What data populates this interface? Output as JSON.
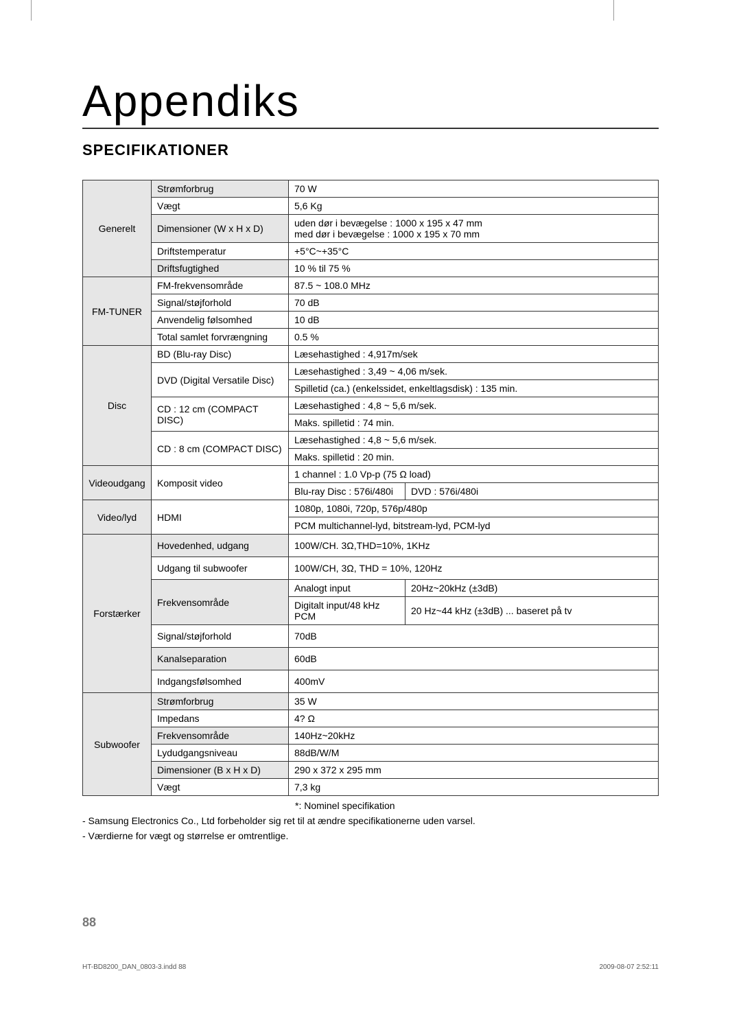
{
  "title": "Appendiks",
  "subtitle": "SPECIFIKATIONER",
  "footnote1": "*:  Nominel specifikation",
  "footnote2": "- Samsung Electronics Co., Ltd forbeholder sig ret til at ændre specifikationerne uden varsel.",
  "footnote3": "- Værdierne for vægt og størrelse er omtrentlige.",
  "page_num": "88",
  "doc_id": "HT-BD8200_DAN_0803-3.indd   88",
  "timestamp": "2009-08-07    2:52:11",
  "table": {
    "generelt": {
      "name": "Generelt",
      "rows": [
        {
          "label": "Strømforbrug",
          "val": "70 W"
        },
        {
          "label": "Vægt",
          "val": "5,6 Kg"
        },
        {
          "label": "Dimensioner (W x  H x  D)",
          "val": "uden dør i bevægelse : 1000 x 195 x 47 mm\nmed dør i bevægelse : 1000 x 195 x 70 mm"
        },
        {
          "label": "Driftstemperatur",
          "val": "+5°C~+35°C"
        },
        {
          "label": "Driftsfugtighed",
          "val": "10 % til 75 %"
        }
      ]
    },
    "fm": {
      "name": "FM-TUNER",
      "rows": [
        {
          "label": "FM-frekvensområde",
          "val": "87.5 ~ 108.0 MHz"
        },
        {
          "label": "Signal/støjforhold",
          "val": "70 dB"
        },
        {
          "label": "Anvendelig følsomhed",
          "val": "10 dB"
        },
        {
          "label": "Total samlet forvrængning",
          "val": "0.5 %"
        }
      ]
    },
    "disc": {
      "name": "Disc",
      "rows": [
        {
          "label": "BD (Blu-ray Disc)",
          "val": "Læsehastighed : 4,917m/sek"
        },
        {
          "label": "DVD (Digital Versatile Disc)",
          "val1": "Læsehastighed : 3,49 ~ 4,06 m/sek.",
          "val2": "Spilletid (ca.) (enkelssidet, enkeltlagsdisk) : 135 min."
        },
        {
          "label": "CD : 12 cm (COMPACT DISC)",
          "val1": "Læsehastighed : 4,8 ~ 5,6 m/sek.",
          "val2": "Maks. spilletid : 74 min."
        },
        {
          "label": "CD : 8 cm (COMPACT DISC)",
          "val1": "Læsehastighed : 4,8 ~ 5,6 m/sek.",
          "val2": "Maks. spilletid : 20 min."
        }
      ]
    },
    "videoout": {
      "name": "Videoudgang",
      "label": "Komposit video",
      "val1": "1 channel : 1.0 Vp-p (75 Ω load)",
      "val2a": "Blu-ray Disc : 576i/480i",
      "val2b": "DVD : 576i/480i"
    },
    "videolyd": {
      "name": "Video/lyd",
      "label": "HDMI",
      "val1": "1080p, 1080i, 720p, 576p/480p",
      "val2": "PCM multichannel-lyd, bitstream-lyd, PCM-lyd"
    },
    "amp": {
      "name": "Forstærker",
      "rows": {
        "r1": {
          "label": "Hovedenhed, udgang",
          "val": "100W/CH. 3Ω,THD=10%, 1KHz"
        },
        "r2": {
          "label": "Udgang til subwoofer",
          "val": "100W/CH, 3Ω, THD = 10%, 120Hz"
        },
        "r3": {
          "label": "Frekvensområde",
          "a1": "Analogt input",
          "a2": "20Hz~20kHz (±3dB)",
          "b1": "Digitalt input/48 kHz PCM",
          "b2": "20 Hz~44 kHz (±3dB) ... baseret på tv"
        },
        "r4": {
          "label": "Signal/støjforhold",
          "val": "70dB"
        },
        "r5": {
          "label": "Kanalseparation",
          "val": "60dB"
        },
        "r6": {
          "label": "Indgangsfølsomhed",
          "val": "400mV"
        }
      }
    },
    "sub": {
      "name": "Subwoofer",
      "rows": [
        {
          "label": "Strømforbrug",
          "val": "35 W"
        },
        {
          "label": "Impedans",
          "val": "4? Ω",
          "valdisp": "4? Ω"
        },
        {
          "label": "Frekvensområde",
          "val": "140Hz~20kHz"
        },
        {
          "label": "Lydudgangsniveau",
          "val": "88dB/W/M"
        },
        {
          "label": "Dimensioner (B x H x D)",
          "val": "290 x 372 x 295 mm"
        },
        {
          "label": "Vægt",
          "val": "7,3 kg"
        }
      ]
    }
  }
}
